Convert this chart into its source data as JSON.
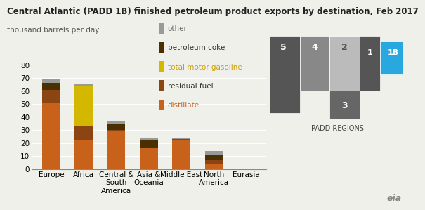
{
  "title": "Central Atlantic (PADD 1B) finished petroleum product exports by destination, Feb 2017",
  "subtitle": "thousand barrels per day",
  "categories": [
    "Europe",
    "Africa",
    "Central &\nSouth\nAmerica",
    "Asia &\nOceania",
    "Middle East",
    "North\nAmerica",
    "Eurasia"
  ],
  "series": {
    "distillate": [
      51,
      22,
      29,
      16,
      22,
      4,
      0
    ],
    "residual_fuel": [
      10,
      11,
      1,
      0,
      1,
      3,
      0
    ],
    "total_motor_gasoline": [
      0,
      31,
      0,
      0,
      0,
      0,
      0
    ],
    "petroleum_coke": [
      5,
      0,
      5,
      6,
      0,
      4,
      0
    ],
    "other": [
      3,
      1,
      2,
      2,
      1,
      3,
      0
    ]
  },
  "colors": {
    "distillate": "#c8621b",
    "residual_fuel": "#8b4513",
    "total_motor_gasoline": "#d4b800",
    "petroleum_coke": "#4a3000",
    "other": "#999999"
  },
  "legend_labels": [
    "other",
    "petroleum coke",
    "total motor gasoline",
    "residual fuel",
    "distillate"
  ],
  "legend_colors": [
    "#999999",
    "#4a3000",
    "#d4b800",
    "#8b4513",
    "#c8621b"
  ],
  "legend_text_colors": [
    "#666666",
    "#333333",
    "#c8a000",
    "#333333",
    "#c8621b"
  ],
  "ylim": [
    0,
    80
  ],
  "yticks": [
    0,
    10,
    20,
    30,
    40,
    50,
    60,
    70,
    80
  ],
  "background_color": "#f0f0eb",
  "title_fontsize": 8.5,
  "subtitle_fontsize": 7.5,
  "tick_fontsize": 7.5,
  "legend_fontsize": 7.5
}
